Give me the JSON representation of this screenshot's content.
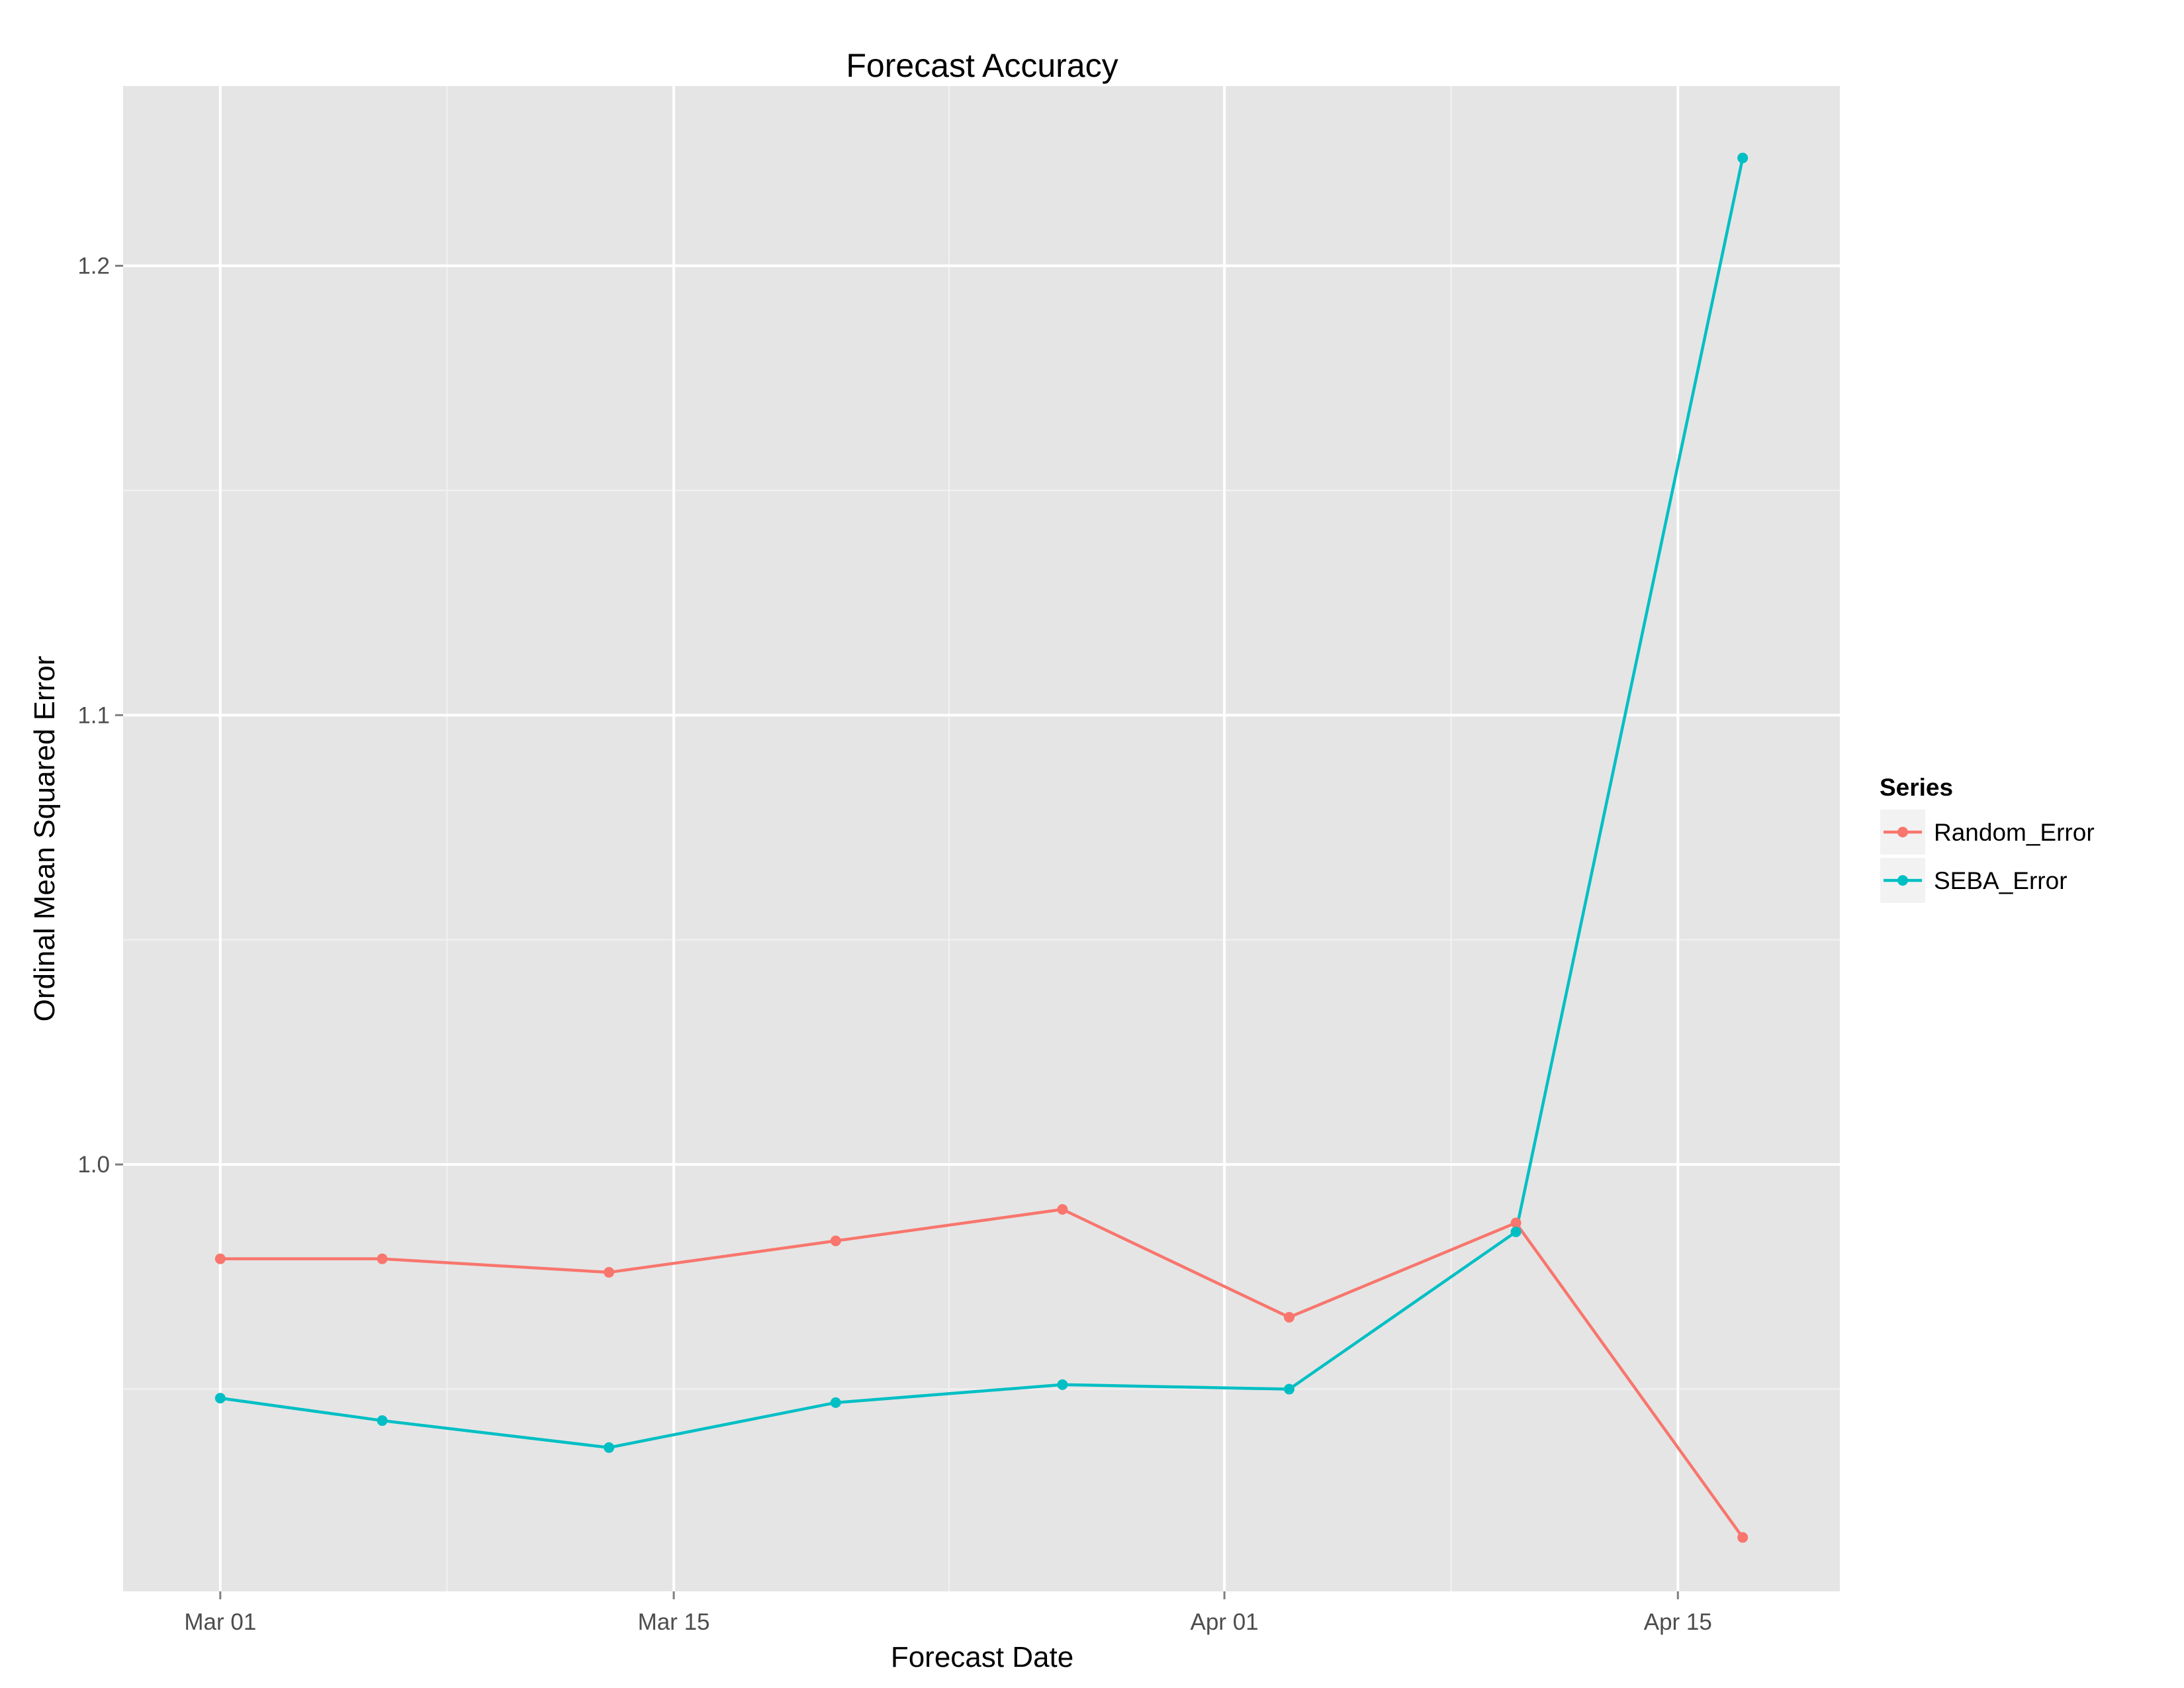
{
  "chart_data": {
    "type": "line",
    "title": "Forecast Accuracy",
    "xlabel": "Forecast Date",
    "ylabel": "Ordinal Mean Squared Error",
    "x_axis": {
      "type": "date",
      "range": [
        "2015-02-26",
        "2015-04-20"
      ],
      "ticks": [
        {
          "value": "2015-03-01",
          "label": "Mar 01"
        },
        {
          "value": "2015-03-15",
          "label": "Mar 15"
        },
        {
          "value": "2015-04-01",
          "label": "Apr 01"
        },
        {
          "value": "2015-04-15",
          "label": "Apr 15"
        }
      ]
    },
    "y_axis": {
      "range": [
        0.905,
        1.24
      ],
      "ticks": [
        1.0,
        1.1,
        1.2
      ],
      "tick_labels": [
        "1.0",
        "1.1",
        "1.2"
      ]
    },
    "x": [
      "2015-03-01",
      "2015-03-06",
      "2015-03-13",
      "2015-03-20",
      "2015-03-27",
      "2015-04-03",
      "2015-04-10",
      "2015-04-17"
    ],
    "series": [
      {
        "name": "Random_Error",
        "color": "#F8766D",
        "values": [
          0.979,
          0.979,
          0.976,
          0.983,
          0.99,
          0.966,
          0.987,
          0.917
        ]
      },
      {
        "name": "SEBA_Error",
        "color": "#00BFC4",
        "values": [
          0.948,
          0.943,
          0.937,
          0.947,
          0.951,
          0.95,
          0.985,
          1.224
        ]
      }
    ],
    "legend": {
      "title": "Series",
      "placement": "right"
    },
    "grid": true,
    "panel_background": "#E5E5E5",
    "grid_color": "#FFFFFF"
  }
}
